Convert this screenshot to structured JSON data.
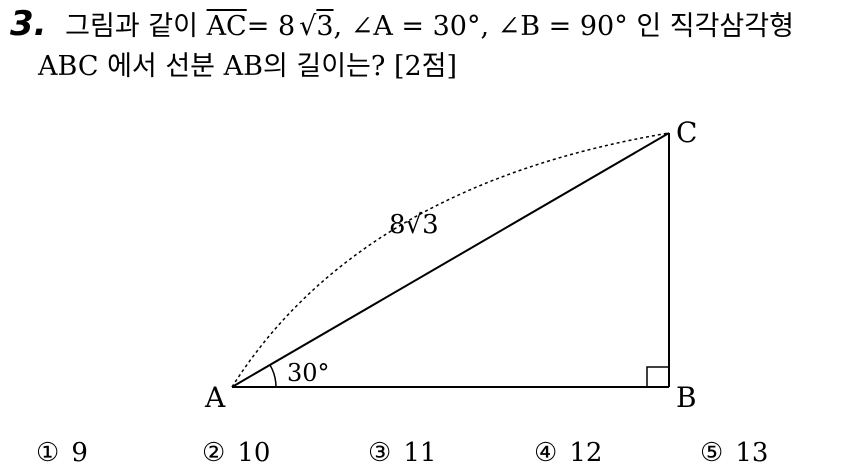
{
  "question": {
    "number": "3.",
    "text_1a": "그림과 같이",
    "segment_ac": "AC",
    "eq_8": "= 8",
    "sqrt_symbol": "√",
    "radicand": "3",
    "text_1b": ", ∠A = 30°, ∠B = 90° 인 직각삼각형",
    "line2": "ABC 에서 선분 AB의 길이는? [2점]"
  },
  "figure": {
    "label_a": "A",
    "label_b": "B",
    "label_c": "C",
    "hyp_label": "8√3",
    "angle_label": "30°"
  },
  "choices": [
    {
      "mark": "①",
      "value": "9"
    },
    {
      "mark": "②",
      "value": "10"
    },
    {
      "mark": "③",
      "value": "11"
    },
    {
      "mark": "④",
      "value": "12"
    },
    {
      "mark": "⑤",
      "value": "13"
    }
  ]
}
